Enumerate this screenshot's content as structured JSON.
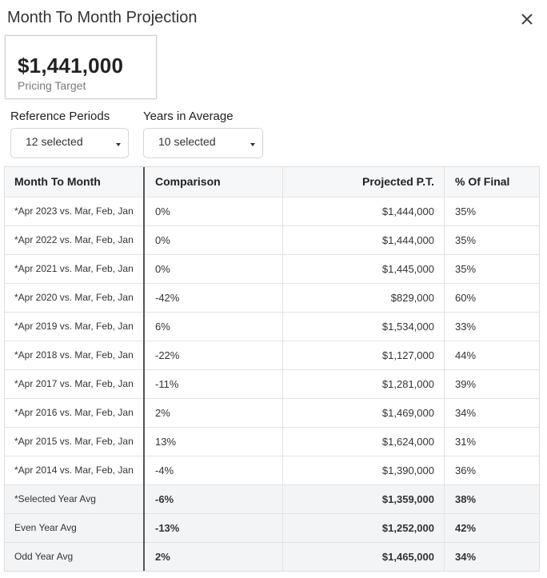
{
  "header": {
    "title": "Month To Month Projection",
    "close_icon": "close-icon"
  },
  "target": {
    "value": "$1,441,000",
    "label": "Pricing Target"
  },
  "filters": {
    "reference_periods": {
      "label": "Reference Periods",
      "value": "12 selected"
    },
    "years_in_average": {
      "label": "Years in Average",
      "value": "10 selected"
    }
  },
  "table": {
    "columns": [
      "Month To Month",
      "Comparison",
      "Projected P.T.",
      "% Of Final"
    ],
    "rows": [
      {
        "period": "*Apr 2023 vs. Mar, Feb, Jan",
        "comparison": "0%",
        "projected": "$1,444,000",
        "pct": "35%"
      },
      {
        "period": "*Apr 2022 vs. Mar, Feb, Jan",
        "comparison": "0%",
        "projected": "$1,444,000",
        "pct": "35%"
      },
      {
        "period": "*Apr 2021 vs. Mar, Feb, Jan",
        "comparison": "0%",
        "projected": "$1,445,000",
        "pct": "35%"
      },
      {
        "period": "*Apr 2020 vs. Mar, Feb, Jan",
        "comparison": "-42%",
        "projected": "$829,000",
        "pct": "60%"
      },
      {
        "period": "*Apr 2019 vs. Mar, Feb, Jan",
        "comparison": "6%",
        "projected": "$1,534,000",
        "pct": "33%"
      },
      {
        "period": "*Apr 2018 vs. Mar, Feb, Jan",
        "comparison": "-22%",
        "projected": "$1,127,000",
        "pct": "44%"
      },
      {
        "period": "*Apr 2017 vs. Mar, Feb, Jan",
        "comparison": "-11%",
        "projected": "$1,281,000",
        "pct": "39%"
      },
      {
        "period": "*Apr 2016 vs. Mar, Feb, Jan",
        "comparison": "2%",
        "projected": "$1,469,000",
        "pct": "34%"
      },
      {
        "period": "*Apr 2015 vs. Mar, Feb, Jan",
        "comparison": "13%",
        "projected": "$1,624,000",
        "pct": "31%"
      },
      {
        "period": "*Apr 2014 vs. Mar, Feb, Jan",
        "comparison": "-4%",
        "projected": "$1,390,000",
        "pct": "36%"
      }
    ],
    "summary": [
      {
        "period": "*Selected Year Avg",
        "comparison": "-6%",
        "projected": "$1,359,000",
        "pct": "38%"
      },
      {
        "period": "Even Year Avg",
        "comparison": "-13%",
        "projected": "$1,252,000",
        "pct": "42%"
      },
      {
        "period": "Odd Year Avg",
        "comparison": "2%",
        "projected": "$1,465,000",
        "pct": "34%"
      }
    ]
  }
}
